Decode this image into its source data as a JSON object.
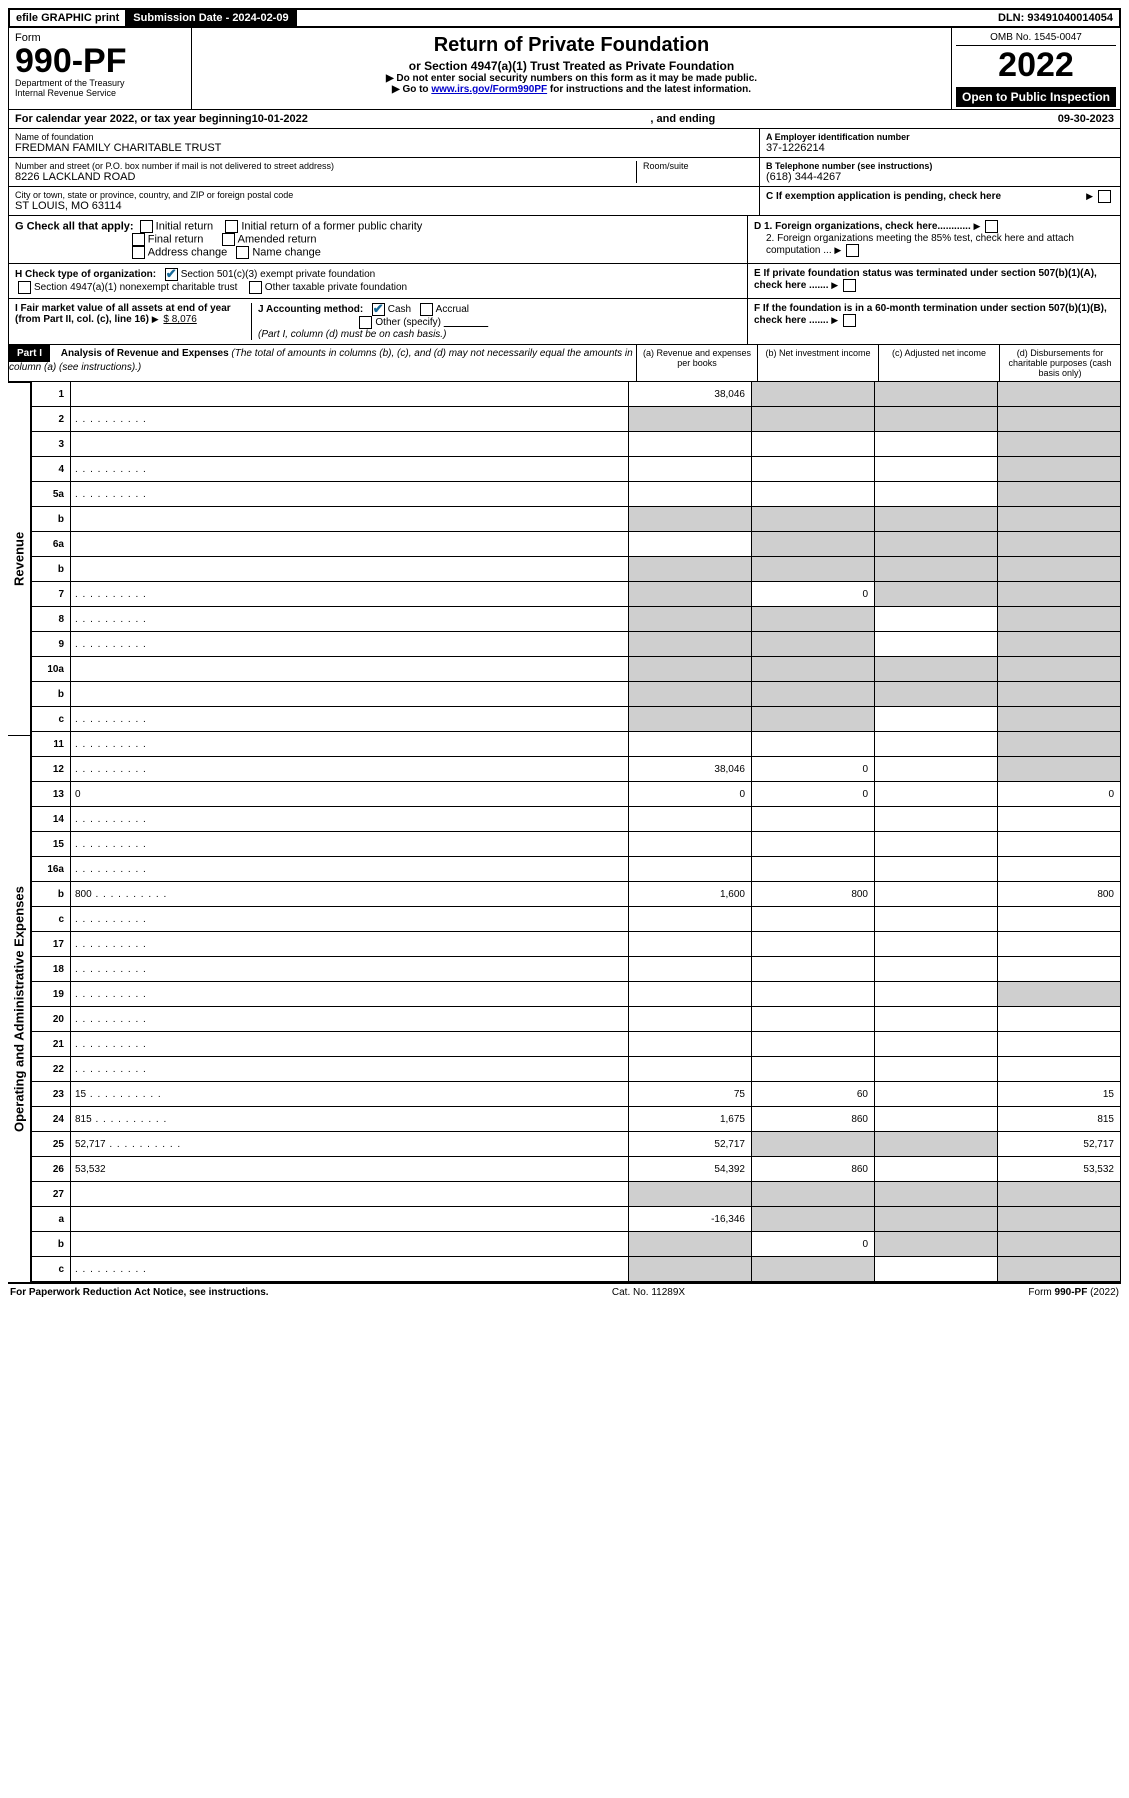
{
  "topbar": {
    "efile": "efile GRAPHIC print",
    "sub_label": "Submission Date - 2024-02-09",
    "dln": "DLN: 93491040014054"
  },
  "header": {
    "form_word": "Form",
    "form_no": "990-PF",
    "dept1": "Department of the Treasury",
    "dept2": "Internal Revenue Service",
    "title": "Return of Private Foundation",
    "subtitle": "or Section 4947(a)(1) Trust Treated as Private Foundation",
    "note1": "▶ Do not enter social security numbers on this form as it may be made public.",
    "note2_pre": "▶ Go to ",
    "note2_link": "www.irs.gov/Form990PF",
    "note2_post": " for instructions and the latest information.",
    "omb": "OMB No. 1545-0047",
    "year": "2022",
    "open": "Open to Public Inspection"
  },
  "calendar": {
    "pre": "For calendar year 2022, or tax year beginning ",
    "begin": "10-01-2022",
    "mid": ", and ending ",
    "end": "09-30-2023"
  },
  "entity": {
    "name_label": "Name of foundation",
    "name": "FREDMAN FAMILY CHARITABLE TRUST",
    "addr_label": "Number and street (or P.O. box number if mail is not delivered to street address)",
    "addr": "8226 LACKLAND ROAD",
    "room_label": "Room/suite",
    "room": "",
    "city_label": "City or town, state or province, country, and ZIP or foreign postal code",
    "city": "ST LOUIS, MO  63114",
    "a_label": "A Employer identification number",
    "a_val": "37-1226214",
    "b_label": "B Telephone number (see instructions)",
    "b_val": "(618) 344-4267",
    "c_label": "C If exemption application is pending, check here"
  },
  "g": {
    "label": "G Check all that apply:",
    "o1": "Initial return",
    "o2": "Initial return of a former public charity",
    "o3": "Final return",
    "o4": "Amended return",
    "o5": "Address change",
    "o6": "Name change"
  },
  "d": {
    "d1": "D 1. Foreign organizations, check here............",
    "d2": "2. Foreign organizations meeting the 85% test, check here and attach computation ..."
  },
  "h": {
    "label": "H Check type of organization:",
    "o1": "Section 501(c)(3) exempt private foundation",
    "o2": "Section 4947(a)(1) nonexempt charitable trust",
    "o3": "Other taxable private foundation"
  },
  "e": {
    "label": "E  If private foundation status was terminated under section 507(b)(1)(A), check here ......."
  },
  "i": {
    "label": "I Fair market value of all assets at end of year (from Part II, col. (c), line 16)",
    "val": "$  8,076"
  },
  "j": {
    "label": "J Accounting method:",
    "o1": "Cash",
    "o2": "Accrual",
    "o3": "Other (specify)",
    "note": "(Part I, column (d) must be on cash basis.)"
  },
  "f": {
    "label": "F  If the foundation is in a 60-month termination under section 507(b)(1)(B), check here ......."
  },
  "part1": {
    "label": "Part I",
    "title": "Analysis of Revenue and Expenses",
    "desc": " (The total of amounts in columns (b), (c), and (d) may not necessarily equal the amounts in column (a) (see instructions).)",
    "col_a": "(a)   Revenue and expenses per books",
    "col_b": "(b)   Net investment income",
    "col_c": "(c)   Adjusted net income",
    "col_d": "(d)  Disbursements for charitable purposes (cash basis only)"
  },
  "side": {
    "rev": "Revenue",
    "exp": "Operating and Administrative Expenses"
  },
  "rows": [
    {
      "n": "1",
      "d": "",
      "a": "38,046",
      "b": "",
      "c": "",
      "sb": true,
      "sc": true,
      "sd": true
    },
    {
      "n": "2",
      "d": "",
      "a": "",
      "b": "",
      "c": "",
      "sa": true,
      "sb": true,
      "sc": true,
      "sd": true,
      "dots": true
    },
    {
      "n": "3",
      "d": "",
      "a": "",
      "b": "",
      "c": "",
      "sd": true
    },
    {
      "n": "4",
      "d": "",
      "a": "",
      "b": "",
      "c": "",
      "sd": true,
      "dots": true
    },
    {
      "n": "5a",
      "d": "",
      "a": "",
      "b": "",
      "c": "",
      "sd": true,
      "dots": true
    },
    {
      "n": "b",
      "d": "",
      "a": "",
      "b": "",
      "c": "",
      "sa": true,
      "sb": true,
      "sc": true,
      "sd": true
    },
    {
      "n": "6a",
      "d": "",
      "a": "",
      "b": "",
      "c": "",
      "sb": true,
      "sc": true,
      "sd": true
    },
    {
      "n": "b",
      "d": "",
      "a": "",
      "b": "",
      "c": "",
      "sa": true,
      "sb": true,
      "sc": true,
      "sd": true
    },
    {
      "n": "7",
      "d": "",
      "a": "",
      "b": "0",
      "c": "",
      "sa": true,
      "sc": true,
      "sd": true,
      "dots": true
    },
    {
      "n": "8",
      "d": "",
      "a": "",
      "b": "",
      "c": "",
      "sa": true,
      "sb": true,
      "sd": true,
      "dots": true
    },
    {
      "n": "9",
      "d": "",
      "a": "",
      "b": "",
      "c": "",
      "sa": true,
      "sb": true,
      "sd": true,
      "dots": true
    },
    {
      "n": "10a",
      "d": "",
      "a": "",
      "b": "",
      "c": "",
      "sa": true,
      "sb": true,
      "sc": true,
      "sd": true
    },
    {
      "n": "b",
      "d": "",
      "a": "",
      "b": "",
      "c": "",
      "sa": true,
      "sb": true,
      "sc": true,
      "sd": true
    },
    {
      "n": "c",
      "d": "",
      "a": "",
      "b": "",
      "c": "",
      "sa": true,
      "sb": true,
      "sd": true,
      "dots": true
    },
    {
      "n": "11",
      "d": "",
      "a": "",
      "b": "",
      "c": "",
      "sd": true,
      "dots": true
    },
    {
      "n": "12",
      "d": "",
      "a": "38,046",
      "b": "0",
      "c": "",
      "sd": true,
      "dots": true
    },
    {
      "n": "13",
      "d": "0",
      "a": "0",
      "b": "0",
      "c": ""
    },
    {
      "n": "14",
      "d": "",
      "a": "",
      "b": "",
      "c": "",
      "dots": true
    },
    {
      "n": "15",
      "d": "",
      "a": "",
      "b": "",
      "c": "",
      "dots": true
    },
    {
      "n": "16a",
      "d": "",
      "a": "",
      "b": "",
      "c": "",
      "dots": true
    },
    {
      "n": "b",
      "d": "800",
      "a": "1,600",
      "b": "800",
      "c": "",
      "dots": true
    },
    {
      "n": "c",
      "d": "",
      "a": "",
      "b": "",
      "c": "",
      "dots": true
    },
    {
      "n": "17",
      "d": "",
      "a": "",
      "b": "",
      "c": "",
      "dots": true
    },
    {
      "n": "18",
      "d": "",
      "a": "",
      "b": "",
      "c": "",
      "dots": true
    },
    {
      "n": "19",
      "d": "",
      "a": "",
      "b": "",
      "c": "",
      "sd": true,
      "dots": true
    },
    {
      "n": "20",
      "d": "",
      "a": "",
      "b": "",
      "c": "",
      "dots": true
    },
    {
      "n": "21",
      "d": "",
      "a": "",
      "b": "",
      "c": "",
      "dots": true
    },
    {
      "n": "22",
      "d": "",
      "a": "",
      "b": "",
      "c": "",
      "dots": true
    },
    {
      "n": "23",
      "d": "15",
      "a": "75",
      "b": "60",
      "c": "",
      "dots": true
    },
    {
      "n": "24",
      "d": "815",
      "a": "1,675",
      "b": "860",
      "c": "",
      "dots": true
    },
    {
      "n": "25",
      "d": "52,717",
      "a": "52,717",
      "b": "",
      "c": "",
      "sb": true,
      "sc": true,
      "dots": true
    },
    {
      "n": "26",
      "d": "53,532",
      "a": "54,392",
      "b": "860",
      "c": ""
    },
    {
      "n": "27",
      "d": "",
      "a": "",
      "b": "",
      "c": "",
      "sa": true,
      "sb": true,
      "sc": true,
      "sd": true
    },
    {
      "n": "a",
      "d": "",
      "a": "-16,346",
      "b": "",
      "c": "",
      "sb": true,
      "sc": true,
      "sd": true
    },
    {
      "n": "b",
      "d": "",
      "a": "",
      "b": "0",
      "c": "",
      "sa": true,
      "sc": true,
      "sd": true
    },
    {
      "n": "c",
      "d": "",
      "a": "",
      "b": "",
      "c": "",
      "sa": true,
      "sb": true,
      "sd": true,
      "dots": true
    }
  ],
  "footer": {
    "left": "For Paperwork Reduction Act Notice, see instructions.",
    "mid": "Cat. No. 11289X",
    "right": "Form 990-PF (2022)"
  }
}
